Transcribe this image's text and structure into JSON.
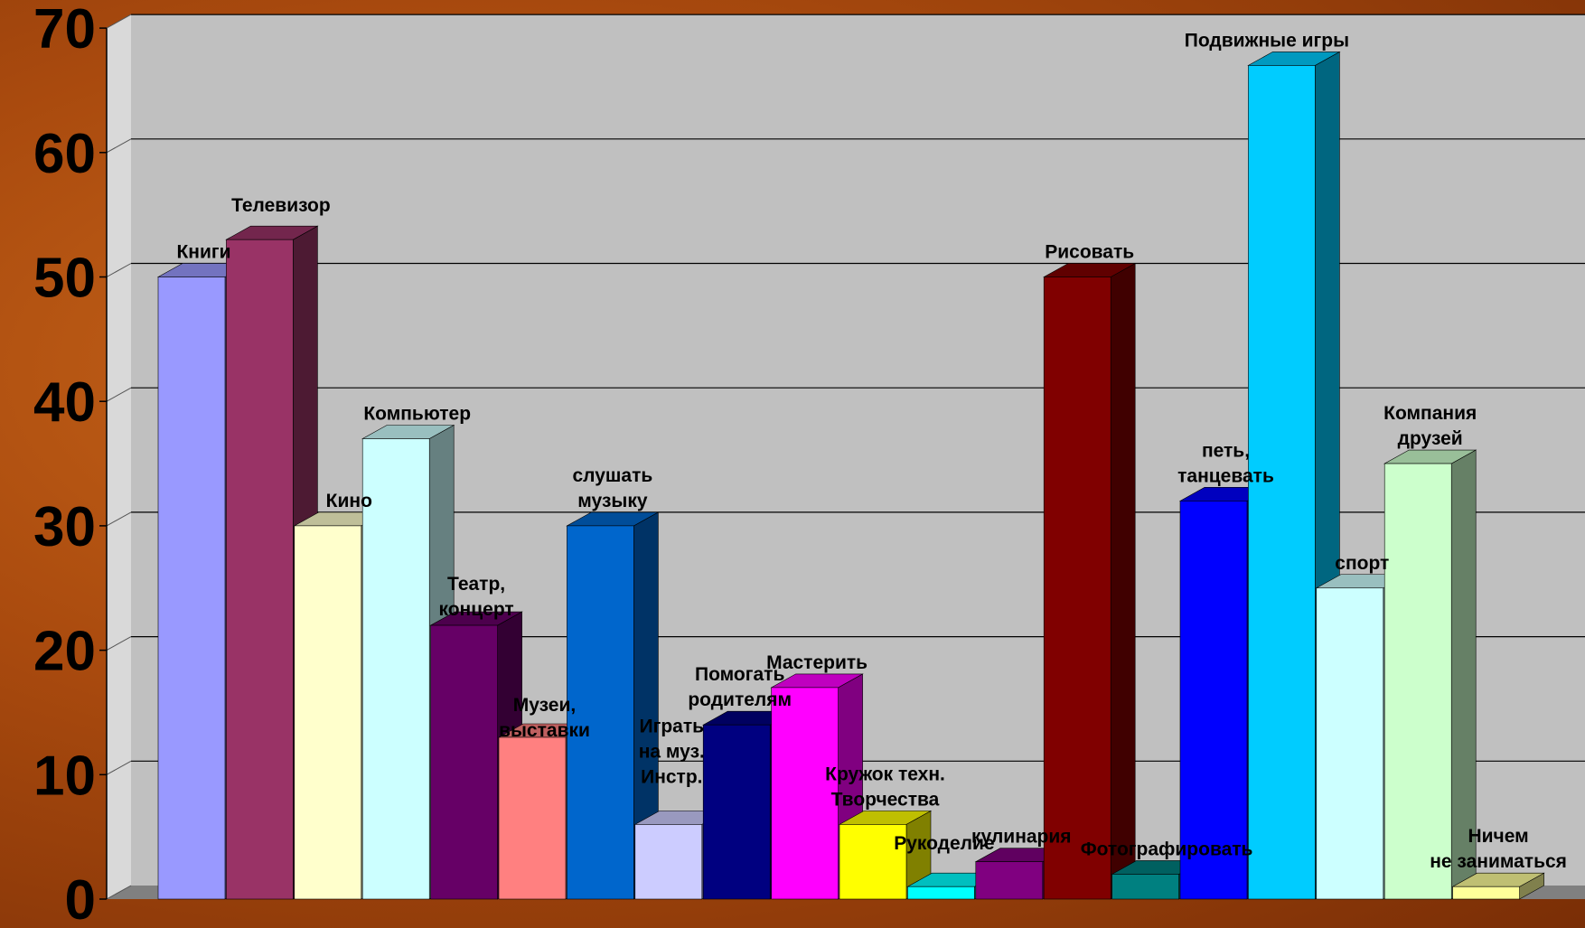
{
  "chart_data": {
    "type": "bar",
    "ylim": [
      0,
      70
    ],
    "yticks": [
      0,
      10,
      20,
      30,
      40,
      50,
      60,
      70
    ],
    "grid": true,
    "categories": [
      {
        "label": [
          "Книги"
        ],
        "value": 50,
        "color": "#9999ff"
      },
      {
        "label": [
          "Телевизор"
        ],
        "value": 53,
        "color": "#993366"
      },
      {
        "label": [
          "Кино"
        ],
        "value": 30,
        "color": "#ffffcc"
      },
      {
        "label": [
          "Компьютер"
        ],
        "value": 37,
        "color": "#ccffff"
      },
      {
        "label": [
          "Театр,",
          "концерт"
        ],
        "value": 22,
        "color": "#660066"
      },
      {
        "label": [
          "Музеи,",
          "выставки"
        ],
        "value": 13,
        "color": "#ff8080"
      },
      {
        "label": [
          "слушать",
          "музыку"
        ],
        "value": 30,
        "color": "#0066cc"
      },
      {
        "label": [
          "Играть",
          "на муз.",
          "Инстр."
        ],
        "value": 6,
        "color": "#ccccff"
      },
      {
        "label": [
          "Помогать",
          "родителям"
        ],
        "value": 14,
        "color": "#000080"
      },
      {
        "label": [
          "Мастерить"
        ],
        "value": 17,
        "color": "#ff00ff"
      },
      {
        "label": [
          "Кружок техн.",
          "Творчества"
        ],
        "value": 6,
        "color": "#ffff00"
      },
      {
        "label": [
          "Рукоделие"
        ],
        "value": 1,
        "color": "#00ffff"
      },
      {
        "label": [
          "кулинария"
        ],
        "value": 3,
        "color": "#800080"
      },
      {
        "label": [
          "Рисовать"
        ],
        "value": 50,
        "color": "#800000"
      },
      {
        "label": [
          "Фотографировать"
        ],
        "value": 2,
        "color": "#008080"
      },
      {
        "label": [
          "петь,",
          "танцевать"
        ],
        "value": 32,
        "color": "#0000ff"
      },
      {
        "label": [
          "Подвижные игры"
        ],
        "value": 67,
        "color": "#00ccff"
      },
      {
        "label": [
          "спорт"
        ],
        "value": 25,
        "color": "#ccffff"
      },
      {
        "label": [
          "Компания",
          "друзей"
        ],
        "value": 35,
        "color": "#ccffcc"
      },
      {
        "label": [
          "Ничем",
          "не заниматься"
        ],
        "value": 1,
        "color": "#ffff99"
      }
    ]
  },
  "colors": {
    "plot_wall": "#c0c0c0",
    "floor": "#808080",
    "gridline": "#000000"
  }
}
